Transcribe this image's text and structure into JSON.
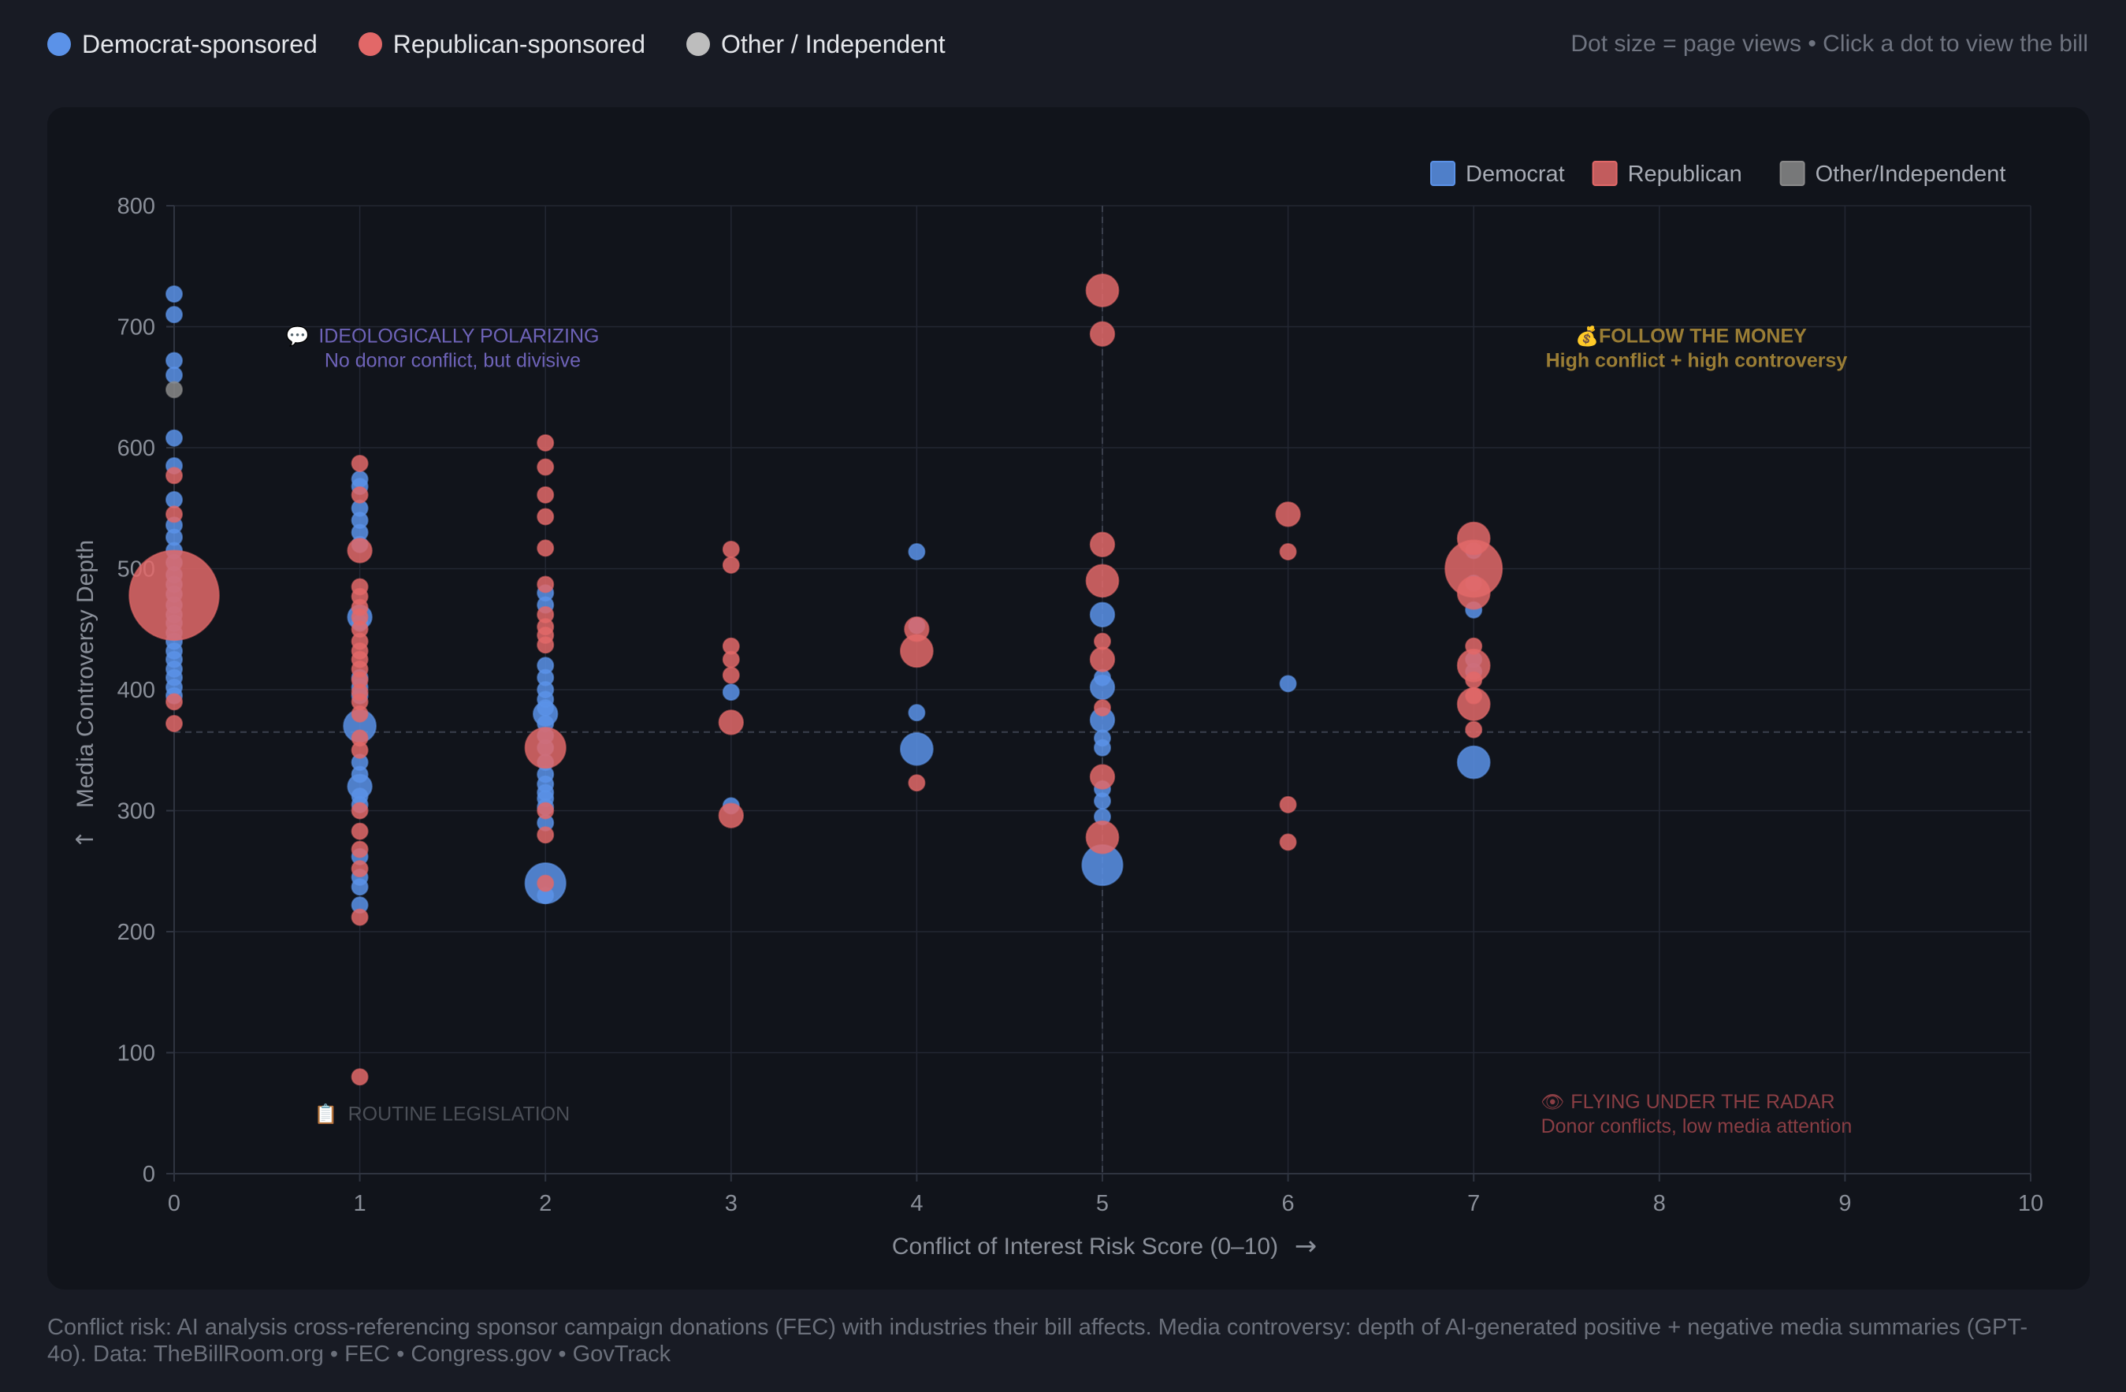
{
  "top_legend": {
    "items": [
      {
        "label": "Democrat-sponsored",
        "color": "#5b92e8"
      },
      {
        "label": "Republican-sponsored",
        "color": "#e26868"
      },
      {
        "label": "Other / Independent",
        "color": "#bdbdbd"
      }
    ],
    "hint": "Dot size = page views • Click a dot to view the bill"
  },
  "footer": {
    "note": "Conflict risk: AI analysis cross-referencing sponsor campaign donations (FEC) with industries their bill affects. Media controversy: depth of AI-generated positive + negative media summaries (GPT-4o). Data: TheBillRoom.org • FEC • Congress.gov • GovTrack"
  },
  "chart_data": {
    "type": "scatter",
    "xlabel": "Conflict of Interest Risk Score (0–10)",
    "xlabel_arrow": "→",
    "ylabel": "Media Controversy Depth",
    "ylabel_arrow": "↑",
    "xlim": [
      0,
      10
    ],
    "ylim": [
      0,
      800
    ],
    "xticks": [
      0,
      1,
      2,
      3,
      4,
      5,
      6,
      7,
      8,
      9,
      10
    ],
    "yticks": [
      0,
      100,
      200,
      300,
      400,
      500,
      600,
      700,
      800
    ],
    "grid": true,
    "reference_lines": {
      "x": 5,
      "y": 365
    },
    "legend": {
      "position": "top-right",
      "items": [
        {
          "label": "Democrat",
          "color": "#5b92e8"
        },
        {
          "label": "Republican",
          "color": "#e26868"
        },
        {
          "label": "Other/Independent",
          "color": "#8a8a8a"
        }
      ]
    },
    "quadrant_labels": {
      "top_left": {
        "icon": "speech-bubble-icon",
        "glyph": "💬",
        "title": "IDEOLOGICALLY POLARIZING",
        "subtitle": "No donor conflict, but divisive",
        "color": "#6e63b8",
        "x": 1.5,
        "y": 687
      },
      "top_right": {
        "icon": "money-bag-icon",
        "glyph": "💰",
        "title": "FOLLOW THE MONEY",
        "subtitle": "High conflict + high controversy",
        "color": "#9a7d35",
        "x": 8.2,
        "y": 687
      },
      "bottom_left": {
        "icon": "clipboard-icon",
        "glyph": "📋",
        "title": "ROUTINE LEGISLATION",
        "subtitle": "",
        "color": "#4b4f57",
        "x": 1.5,
        "y": 44
      },
      "bottom_right": {
        "icon": "eye-icon",
        "glyph": "👁",
        "title": "FLYING UNDER THE RADAR",
        "subtitle": "Donor conflicts, low media attention",
        "color": "#8a3e44",
        "x": 8.2,
        "y": 54
      }
    },
    "series": [
      {
        "name": "Democrat",
        "color": "#5b92e8",
        "points": [
          [
            0,
            727,
            1
          ],
          [
            0,
            710,
            1
          ],
          [
            0,
            672,
            1
          ],
          [
            0,
            660,
            1
          ],
          [
            0,
            608,
            1
          ],
          [
            0,
            585,
            1
          ],
          [
            0,
            557,
            1
          ],
          [
            0,
            536,
            1
          ],
          [
            0,
            526,
            1
          ],
          [
            0,
            515,
            1
          ],
          [
            0,
            505,
            1
          ],
          [
            0,
            495,
            1
          ],
          [
            0,
            487,
            1
          ],
          [
            0,
            479,
            1
          ],
          [
            0,
            470,
            1
          ],
          [
            0,
            462,
            1
          ],
          [
            0,
            455,
            1
          ],
          [
            0,
            447,
            1
          ],
          [
            0,
            440,
            1
          ],
          [
            0,
            432,
            1
          ],
          [
            0,
            425,
            1
          ],
          [
            0,
            417,
            1
          ],
          [
            0,
            410,
            1
          ],
          [
            0,
            402,
            1
          ],
          [
            0,
            395,
            1
          ],
          [
            1,
            574,
            1
          ],
          [
            1,
            568,
            1
          ],
          [
            1,
            550,
            1
          ],
          [
            1,
            540,
            1
          ],
          [
            1,
            530,
            1
          ],
          [
            1,
            520,
            1
          ],
          [
            1,
            460,
            2
          ],
          [
            1,
            455,
            1
          ],
          [
            1,
            410,
            1
          ],
          [
            1,
            402,
            1
          ],
          [
            1,
            395,
            1
          ],
          [
            1,
            370,
            3
          ],
          [
            1,
            340,
            1
          ],
          [
            1,
            330,
            1
          ],
          [
            1,
            320,
            2
          ],
          [
            1,
            312,
            1
          ],
          [
            1,
            305,
            1
          ],
          [
            1,
            262,
            1
          ],
          [
            1,
            245,
            1
          ],
          [
            1,
            237,
            1
          ],
          [
            1,
            222,
            1
          ],
          [
            2,
            480,
            1
          ],
          [
            2,
            470,
            1
          ],
          [
            2,
            420,
            1
          ],
          [
            2,
            410,
            1
          ],
          [
            2,
            400,
            1
          ],
          [
            2,
            392,
            1
          ],
          [
            2,
            385,
            1
          ],
          [
            2,
            380,
            2
          ],
          [
            2,
            372,
            1
          ],
          [
            2,
            362,
            1
          ],
          [
            2,
            352,
            1
          ],
          [
            2,
            340,
            1
          ],
          [
            2,
            330,
            1
          ],
          [
            2,
            322,
            1
          ],
          [
            2,
            315,
            1
          ],
          [
            2,
            310,
            1
          ],
          [
            2,
            303,
            1
          ],
          [
            2,
            290,
            1
          ],
          [
            2,
            240,
            4
          ],
          [
            2,
            230,
            1
          ],
          [
            3,
            398,
            1
          ],
          [
            3,
            304,
            1
          ],
          [
            4,
            514,
            1
          ],
          [
            4,
            453,
            1
          ],
          [
            4,
            381,
            1
          ],
          [
            4,
            351,
            3
          ],
          [
            5,
            462,
            2
          ],
          [
            5,
            410,
            1
          ],
          [
            5,
            402,
            2
          ],
          [
            5,
            375,
            2
          ],
          [
            5,
            360,
            1
          ],
          [
            5,
            352,
            1
          ],
          [
            5,
            318,
            1
          ],
          [
            5,
            308,
            1
          ],
          [
            5,
            295,
            1
          ],
          [
            5,
            255,
            4
          ],
          [
            6,
            405,
            1
          ],
          [
            7,
            515,
            1
          ],
          [
            7,
            488,
            1
          ],
          [
            7,
            466,
            1
          ],
          [
            7,
            425,
            1
          ],
          [
            7,
            415,
            1
          ],
          [
            7,
            340,
            3
          ]
        ]
      },
      {
        "name": "Republican",
        "color": "#e26868",
        "points": [
          [
            0,
            577,
            1
          ],
          [
            0,
            545,
            1
          ],
          [
            0,
            478,
            10
          ],
          [
            0,
            390,
            1
          ],
          [
            0,
            372,
            1
          ],
          [
            1,
            587,
            1
          ],
          [
            1,
            561,
            1
          ],
          [
            1,
            515,
            2
          ],
          [
            1,
            485,
            1
          ],
          [
            1,
            477,
            1
          ],
          [
            1,
            468,
            1
          ],
          [
            1,
            460,
            1
          ],
          [
            1,
            450,
            1
          ],
          [
            1,
            440,
            1
          ],
          [
            1,
            432,
            1
          ],
          [
            1,
            425,
            1
          ],
          [
            1,
            417,
            1
          ],
          [
            1,
            408,
            1
          ],
          [
            1,
            398,
            1
          ],
          [
            1,
            390,
            1
          ],
          [
            1,
            380,
            1
          ],
          [
            1,
            360,
            1
          ],
          [
            1,
            350,
            1
          ],
          [
            1,
            300,
            1
          ],
          [
            1,
            283,
            1
          ],
          [
            1,
            268,
            1
          ],
          [
            1,
            252,
            1
          ],
          [
            1,
            212,
            1
          ],
          [
            1,
            80,
            1
          ],
          [
            2,
            604,
            1
          ],
          [
            2,
            584,
            1
          ],
          [
            2,
            561,
            1
          ],
          [
            2,
            543,
            1
          ],
          [
            2,
            517,
            1
          ],
          [
            2,
            487,
            1
          ],
          [
            2,
            462,
            1
          ],
          [
            2,
            452,
            1
          ],
          [
            2,
            445,
            1
          ],
          [
            2,
            437,
            1
          ],
          [
            2,
            352,
            4
          ],
          [
            2,
            300,
            1
          ],
          [
            2,
            280,
            1
          ],
          [
            2,
            240,
            1
          ],
          [
            3,
            516,
            1
          ],
          [
            3,
            503,
            1
          ],
          [
            3,
            436,
            1
          ],
          [
            3,
            425,
            1
          ],
          [
            3,
            412,
            1
          ],
          [
            3,
            373,
            2
          ],
          [
            3,
            296,
            2
          ],
          [
            4,
            450,
            2
          ],
          [
            4,
            432,
            3
          ],
          [
            4,
            323,
            1
          ],
          [
            5,
            730,
            3
          ],
          [
            5,
            694,
            2
          ],
          [
            5,
            520,
            2
          ],
          [
            5,
            490,
            3
          ],
          [
            5,
            440,
            1
          ],
          [
            5,
            425,
            2
          ],
          [
            5,
            385,
            1
          ],
          [
            5,
            328,
            2
          ],
          [
            5,
            278,
            3
          ],
          [
            6,
            545,
            2
          ],
          [
            6,
            514,
            1
          ],
          [
            6,
            305,
            1
          ],
          [
            6,
            274,
            1
          ],
          [
            7,
            525,
            3
          ],
          [
            7,
            500,
            6
          ],
          [
            7,
            480,
            3
          ],
          [
            7,
            436,
            1
          ],
          [
            7,
            420,
            3
          ],
          [
            7,
            408,
            1
          ],
          [
            7,
            395,
            1
          ],
          [
            7,
            388,
            3
          ],
          [
            7,
            367,
            1
          ]
        ]
      },
      {
        "name": "Other/Independent",
        "color": "#8a8a8a",
        "points": [
          [
            0,
            648,
            1
          ]
        ]
      }
    ]
  }
}
